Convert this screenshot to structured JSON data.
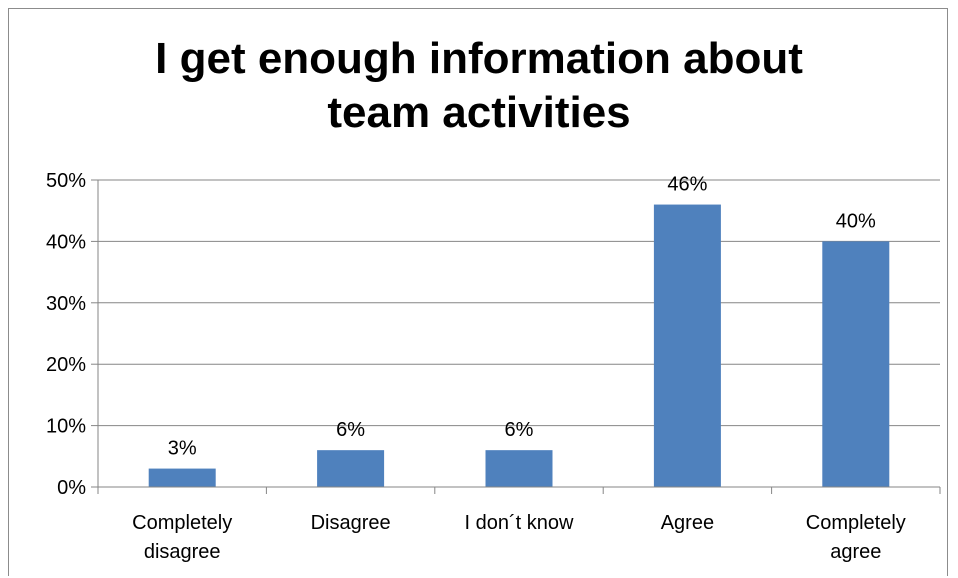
{
  "chart_data": {
    "type": "bar",
    "title": "I get enough information about team activities",
    "categories": [
      [
        "Completely",
        "disagree"
      ],
      [
        "Disagree"
      ],
      [
        "I don´t know"
      ],
      [
        "Agree"
      ],
      [
        "Completely",
        "agree"
      ]
    ],
    "values": [
      3,
      6,
      6,
      46,
      40
    ],
    "value_labels": [
      "3%",
      "6%",
      "6%",
      "46%",
      "40%"
    ],
    "y_ticks": [
      "0%",
      "10%",
      "20%",
      "30%",
      "40%",
      "50%"
    ],
    "ylim": [
      0,
      50
    ],
    "grid": true,
    "bar_color": "#4f81bd",
    "legend": "none"
  }
}
